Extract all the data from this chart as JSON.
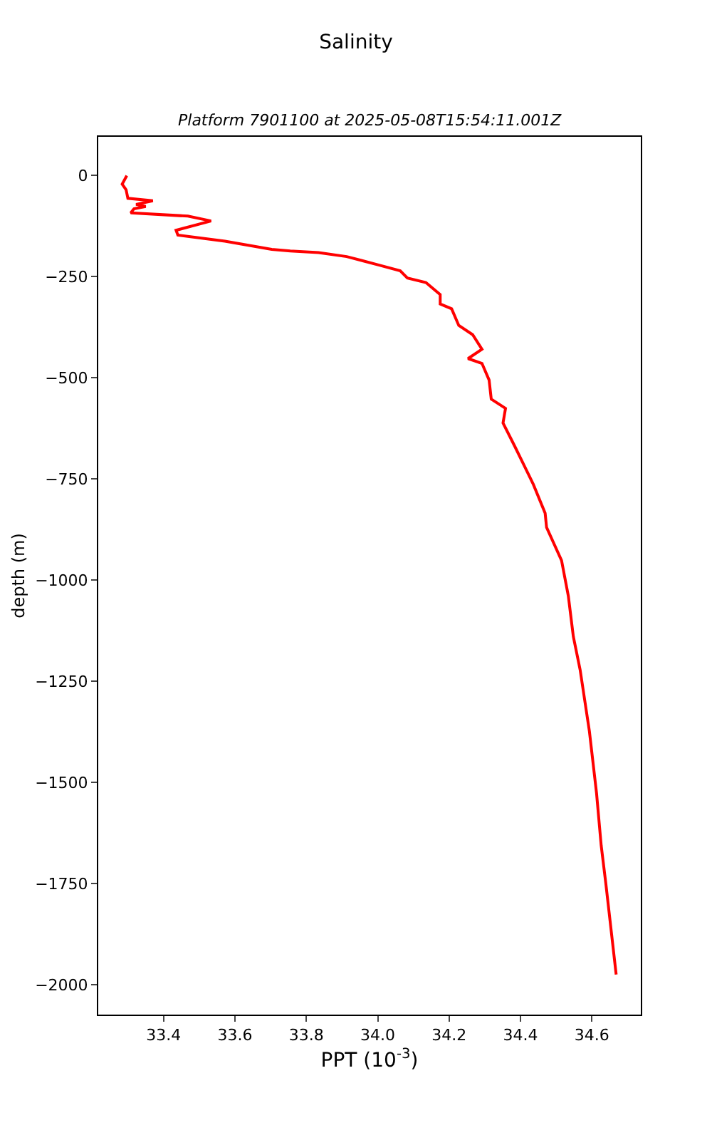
{
  "chart_data": {
    "type": "line",
    "title": "Salinity",
    "subtitle": "Platform 7901100 at 2025-05-08T15:54:11.001Z",
    "xlabel": "PPT (10$^{-3}$)",
    "ylabel": "depth (m)",
    "series": [
      {
        "color": "#ff0000",
        "x": [
          33.297,
          33.284,
          33.295,
          33.3,
          33.37,
          33.323,
          33.35,
          33.317,
          33.308,
          33.468,
          33.533,
          33.435,
          33.44,
          33.572,
          33.703,
          33.755,
          33.834,
          33.913,
          34.004,
          34.063,
          34.083,
          34.135,
          34.175,
          34.175,
          34.207,
          34.227,
          34.266,
          34.292,
          34.253,
          34.292,
          34.312,
          34.318,
          34.358,
          34.351,
          34.384,
          34.41,
          34.436,
          34.469,
          34.473,
          34.515,
          34.534,
          34.548,
          34.567,
          34.593,
          34.613,
          34.626,
          34.639,
          34.668
        ],
        "values": [
          -1,
          -22,
          -36,
          -57,
          -63,
          -72,
          -77,
          -83,
          -93,
          -101,
          -113,
          -136,
          -148,
          -163,
          -183,
          -187,
          -191,
          -201,
          -222,
          -236,
          -254,
          -265,
          -295,
          -318,
          -330,
          -371,
          -394,
          -430,
          -453,
          -465,
          -506,
          -553,
          -576,
          -612,
          -670,
          -717,
          -764,
          -835,
          -870,
          -952,
          -1040,
          -1140,
          -1222,
          -1374,
          -1527,
          -1656,
          -1750,
          -1975
        ]
      }
    ],
    "xlim": [
      33.217,
      34.737
    ],
    "xticks": [
      {
        "value": 33.4,
        "label": "33.4"
      },
      {
        "value": 33.6,
        "label": "33.6"
      },
      {
        "value": 33.8,
        "label": "33.8"
      },
      {
        "value": 34.0,
        "label": "34.0"
      },
      {
        "value": 34.2,
        "label": "34.2"
      },
      {
        "value": 34.4,
        "label": "34.4"
      },
      {
        "value": 34.6,
        "label": "34.6"
      }
    ],
    "ylim": [
      -2074,
      95
    ],
    "yticks": [
      0,
      -250,
      -500,
      -750,
      -1000,
      -1250,
      -1500,
      -1750,
      -2000
    ],
    "grid": false,
    "marker": "none",
    "line_style": "solid"
  }
}
